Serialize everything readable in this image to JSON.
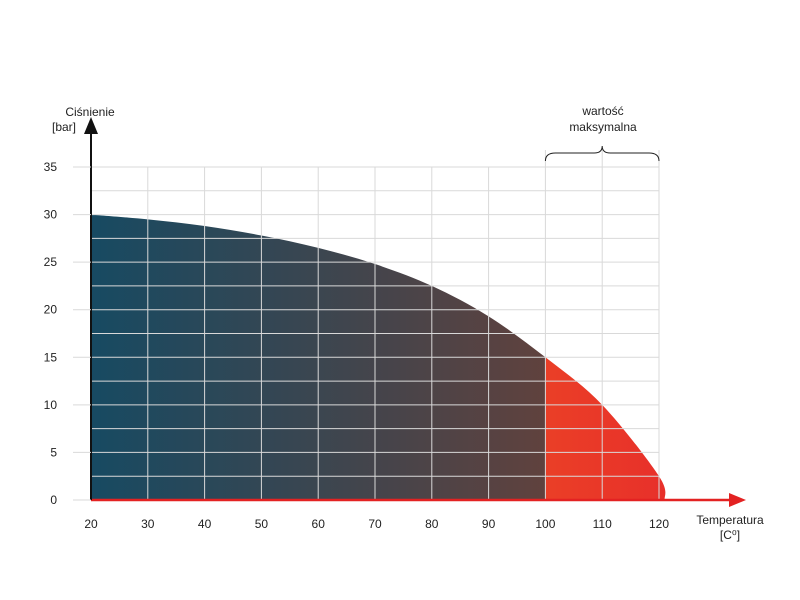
{
  "chart_data": {
    "type": "area",
    "ylabel_line1": "Ciśnienie",
    "ylabel_line2": "[bar]",
    "xlabel_line1": "Temperatura",
    "xlabel_line2": "[C⁰]",
    "annotation_line1": "wartość",
    "annotation_line2": "maksymalna",
    "annotation_range": [
      100,
      120
    ],
    "xlim": [
      20,
      120
    ],
    "ylim": [
      0,
      35
    ],
    "x_ticks": [
      20,
      30,
      40,
      50,
      60,
      70,
      80,
      90,
      100,
      110,
      120
    ],
    "y_ticks": [
      0,
      5,
      10,
      15,
      20,
      25,
      30,
      35
    ],
    "grid": true,
    "series": [
      {
        "x": [
          20,
          30,
          40,
          50,
          60,
          70,
          80,
          90,
          100,
          110,
          120,
          121
        ],
        "y": [
          30,
          29.5,
          28.8,
          27.8,
          26.5,
          24.8,
          22.5,
          19.3,
          15,
          10,
          2.5,
          0
        ]
      }
    ],
    "colors": {
      "normal_start": "#174a62",
      "normal_end": "#733f34",
      "max_start": "#f2761a",
      "max_end": "#e8302a",
      "x_axis": "#e32222",
      "y_axis": "#111111",
      "grid": "#d9d9d9"
    }
  }
}
